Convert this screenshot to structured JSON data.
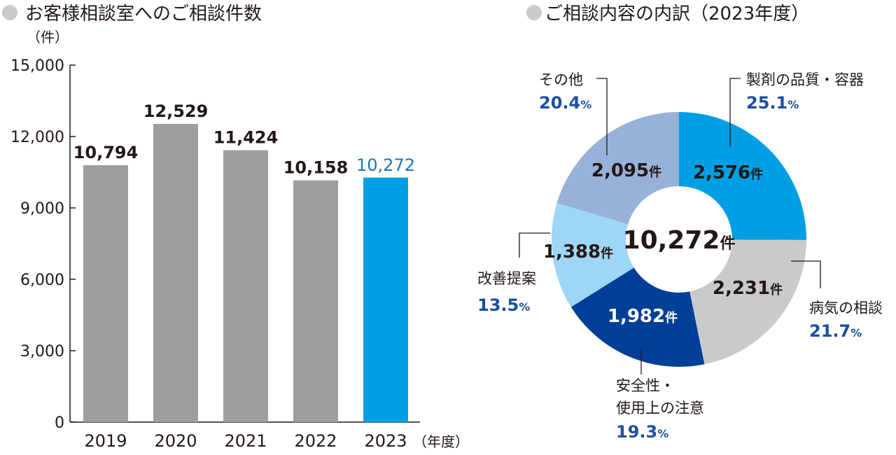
{
  "chart_data": [
    {
      "type": "bar",
      "title": "お客様相談室へのご相談件数",
      "ylabel": "（件）",
      "xlabel": "（年度）",
      "categories": [
        "2019",
        "2020",
        "2021",
        "2022",
        "2023"
      ],
      "values": [
        10794,
        12529,
        11424,
        10158,
        10272
      ],
      "value_labels": [
        "10,794",
        "12,529",
        "11,424",
        "10,158",
        "10,272"
      ],
      "ylim": [
        0,
        15000
      ],
      "yticks": [
        "0",
        "3,000",
        "6,000",
        "9,000",
        "12,000",
        "15,000"
      ],
      "bar_colors": [
        "#9d9e9e",
        "#9d9e9e",
        "#9d9e9e",
        "#9d9e9e",
        "#009fe3"
      ],
      "highlight_label_color": "#1b75bc",
      "grid": false
    },
    {
      "type": "pie",
      "subtype": "donut",
      "title": "ご相談内容の内訳（2023年度）",
      "center_total": "10,272",
      "count_suffix": "件",
      "segments": [
        {
          "name": "製剤の品質・容器",
          "name_lines": [
            "製剤の品質・容器"
          ],
          "count": 2576,
          "count_label": "2,576",
          "percent_label": "25.1",
          "color": "#009fe3",
          "text_color": "#231815"
        },
        {
          "name": "病気の相談",
          "name_lines": [
            "病気の相談"
          ],
          "count": 2231,
          "count_label": "2,231",
          "percent_label": "21.7",
          "color": "#c9caca",
          "text_color": "#231815"
        },
        {
          "name": "安全性・使用上の注意",
          "name_lines": [
            "安全性・",
            "使用上の注意"
          ],
          "count": 1982,
          "count_label": "1,982",
          "percent_label": "19.3",
          "color": "#003f98",
          "text_color": "#ffffff"
        },
        {
          "name": "改善提案",
          "name_lines": [
            "改善提案"
          ],
          "count": 1388,
          "count_label": "1,388",
          "percent_label": "13.5",
          "color": "#9dd7f5",
          "text_color": "#231815"
        },
        {
          "name": "その他",
          "name_lines": [
            "その他"
          ],
          "count": 2095,
          "count_label": "2,095",
          "percent_label": "20.4",
          "color": "#97b1d9",
          "text_color": "#231815"
        }
      ],
      "percent_sign": "%",
      "legend": "callouts"
    }
  ],
  "bullet_color": "#c9caca"
}
